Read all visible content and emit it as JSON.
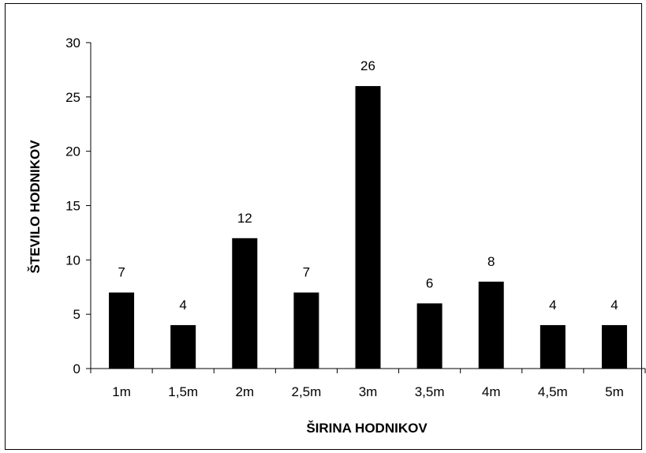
{
  "chart_data": {
    "type": "bar",
    "title": "",
    "xlabel": "ŠIRINA HODNIKOV",
    "ylabel": "ŠTEVILO HODNIKOV",
    "categories": [
      "1m",
      "1,5m",
      "2m",
      "2,5m",
      "3m",
      "3,5m",
      "4m",
      "4,5m",
      "5m"
    ],
    "values": [
      7,
      4,
      12,
      7,
      26,
      6,
      8,
      4,
      4
    ],
    "value_labels": [
      "7",
      "4",
      "12",
      "7",
      "26",
      "6",
      "8",
      "4",
      "4"
    ],
    "ylim": [
      0,
      30
    ],
    "yticks": [
      0,
      5,
      10,
      15,
      20,
      25,
      30
    ],
    "ytick_labels": [
      "0",
      "5",
      "10",
      "15",
      "20",
      "25",
      "30"
    ],
    "grid": false,
    "legend": false,
    "bar_color": "#000000"
  }
}
